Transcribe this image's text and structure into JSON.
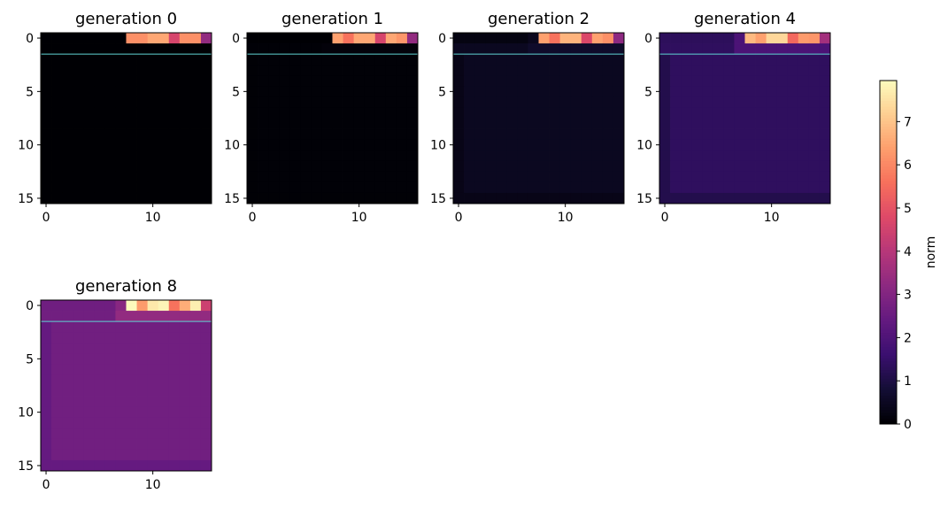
{
  "chart_data": {
    "type": "heatmap",
    "panels": [
      {
        "title": "generation 0",
        "generation": 0,
        "row0": [
          0,
          0,
          0,
          0,
          0,
          0,
          0,
          0,
          6.1,
          6.1,
          6.5,
          6.5,
          4.6,
          6.1,
          6.1,
          3.3
        ],
        "row1_tail": 0,
        "body": 0,
        "edge": 0
      },
      {
        "title": "generation 1",
        "generation": 1,
        "row0": [
          0,
          0,
          0,
          0,
          0,
          0,
          0,
          0,
          6.4,
          5.6,
          6.5,
          6.5,
          4.6,
          6.5,
          6.2,
          3.3
        ],
        "row1_tail": 0.1,
        "body": 0.05,
        "edge": 0.03
      },
      {
        "title": "generation 2",
        "generation": 2,
        "row0": [
          0.2,
          0.2,
          0.2,
          0.2,
          0.2,
          0.2,
          0.2,
          0.4,
          6.4,
          5.6,
          6.7,
          6.7,
          4.7,
          6.4,
          6.1,
          3.2
        ],
        "row1_tail": 0.6,
        "body": 0.45,
        "edge": 0.3
      },
      {
        "title": "generation 4",
        "generation": 4,
        "row0": [
          1.3,
          1.3,
          1.3,
          1.3,
          1.3,
          1.3,
          1.3,
          1.9,
          6.8,
          6.4,
          7.3,
          7.3,
          5.4,
          6.3,
          6.2,
          3.6
        ],
        "row1_tail": 1.9,
        "body": 1.35,
        "edge": 1.1
      },
      {
        "title": "generation 8",
        "generation": 8,
        "row0": [
          2.6,
          2.6,
          2.6,
          2.6,
          2.6,
          2.6,
          2.6,
          3.1,
          7.9,
          6.3,
          7.6,
          7.8,
          5.6,
          6.6,
          7.7,
          4.4
        ],
        "row1_tail": 3.3,
        "body": 2.65,
        "edge": 2.4
      }
    ],
    "grid_size": 16,
    "x_ticks": [
      0,
      10
    ],
    "y_ticks": [
      0,
      5,
      10,
      15
    ],
    "hline_row": 2,
    "hline_color": "#5fd3d3",
    "colormap": "magma",
    "colorbar": {
      "label": "norm",
      "min": 0,
      "max": 7.95,
      "ticks": [
        0,
        1,
        2,
        3,
        4,
        5,
        6,
        7
      ]
    }
  }
}
